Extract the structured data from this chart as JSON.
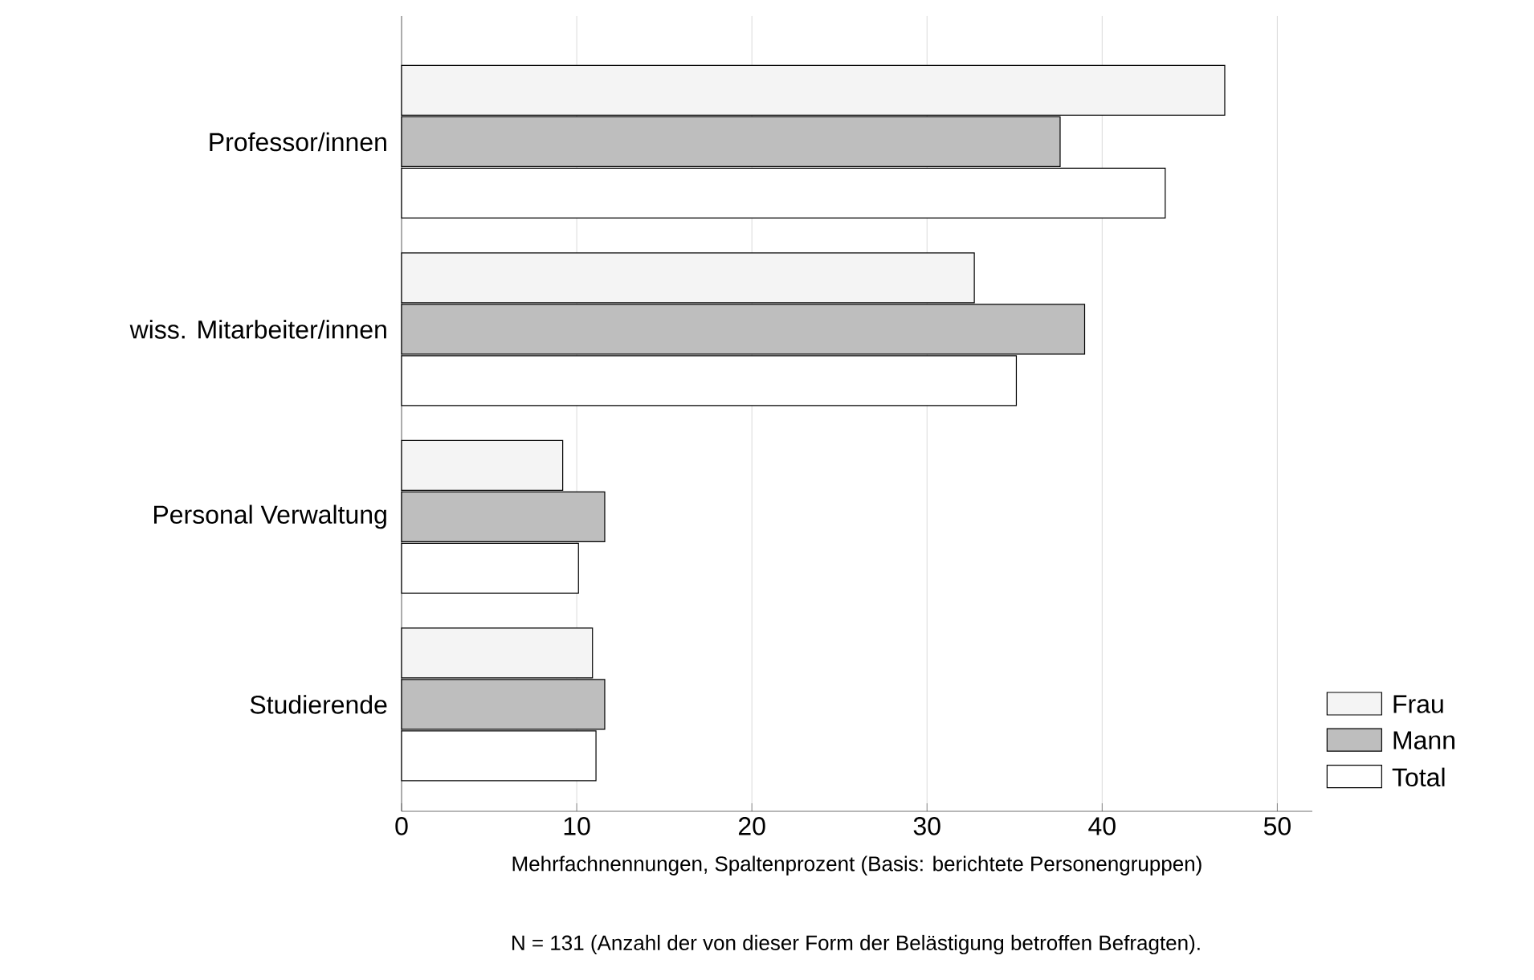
{
  "chart_data": {
    "type": "bar",
    "orientation": "horizontal",
    "categories": [
      "Professor/innen",
      "wiss. Mitarbeiter/innen",
      "Personal Verwaltung",
      "Studierende"
    ],
    "series": [
      {
        "name": "Frau",
        "color": "#f4f4f4",
        "values": [
          47.0,
          32.7,
          9.2,
          10.9
        ]
      },
      {
        "name": "Mann",
        "color": "#bebebe",
        "values": [
          37.6,
          39.0,
          11.6,
          11.6
        ]
      },
      {
        "name": "Total",
        "color": "#ffffff",
        "values": [
          43.6,
          35.1,
          10.1,
          11.1
        ]
      }
    ],
    "xlim": [
      0,
      52
    ],
    "xticks": [
      0,
      10,
      20,
      30,
      40,
      50
    ],
    "xlabel": "Mehrfachnennungen, Spaltenprozent (Basis: berichtete Personengruppen)",
    "annotations": [
      "N = 131 (Anzahl der von dieser Form der Belästigung betroffen Befragten)."
    ],
    "grid": "x",
    "legend": "bottom right"
  }
}
